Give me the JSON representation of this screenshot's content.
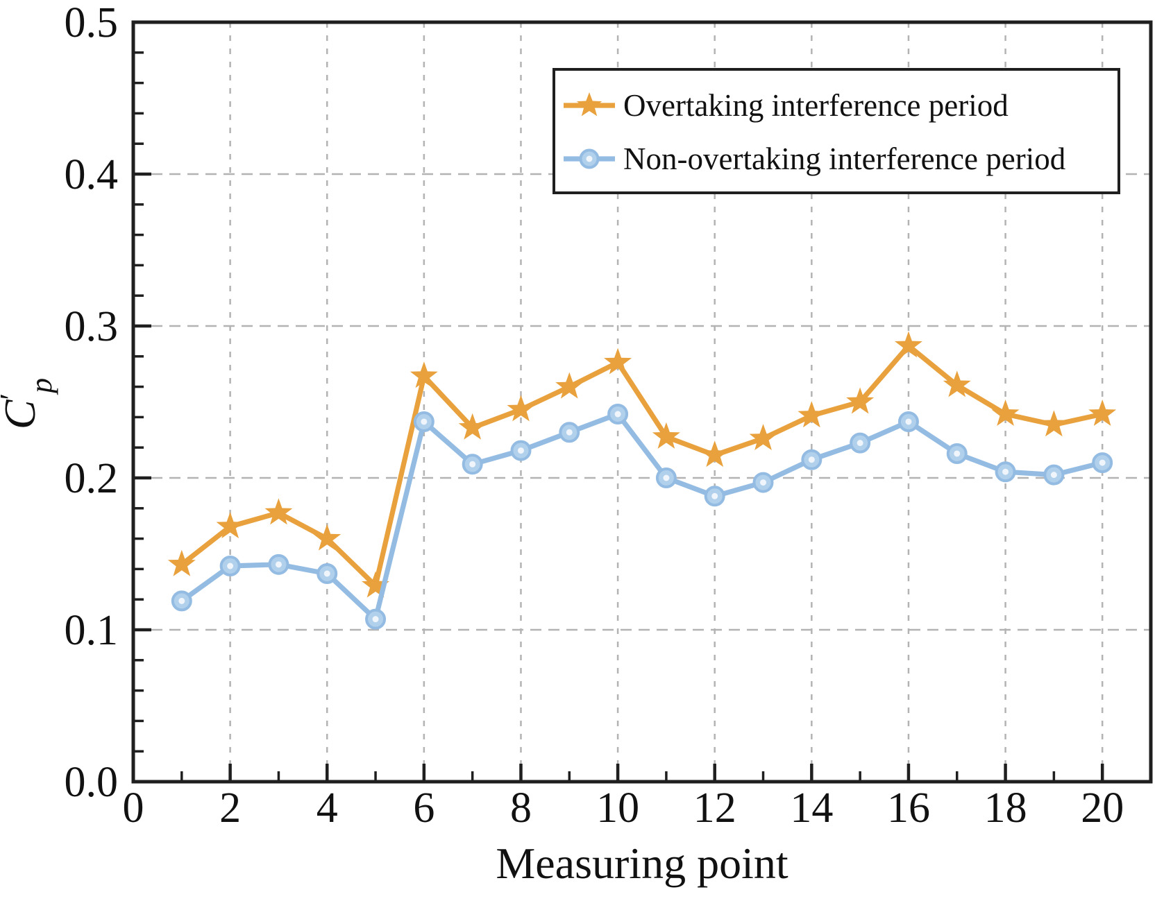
{
  "figure": {
    "xlabel": "Measuring point",
    "ylabel_main": "C",
    "ylabel_prime": "′",
    "ylabel_sub": "p"
  },
  "chart_data": {
    "type": "line",
    "title": "",
    "xlabel": "Measuring point",
    "ylabel": "C′p",
    "xlim": [
      0,
      21
    ],
    "ylim": [
      0,
      0.5
    ],
    "x": [
      1,
      2,
      3,
      4,
      5,
      6,
      7,
      8,
      9,
      10,
      11,
      12,
      13,
      14,
      15,
      16,
      17,
      18,
      19,
      20
    ],
    "series": [
      {
        "name": "Overtaking interference period",
        "color": "#E8A13C",
        "marker": "star",
        "values": [
          0.143,
          0.168,
          0.177,
          0.16,
          0.129,
          0.267,
          0.233,
          0.245,
          0.26,
          0.276,
          0.227,
          0.215,
          0.226,
          0.241,
          0.25,
          0.287,
          0.261,
          0.242,
          0.235,
          0.242
        ]
      },
      {
        "name": "Non-overtaking interference period",
        "color": "#94BCE3",
        "marker": "circle",
        "marker_fill": "#B0D0EC",
        "marker_inner": "#EFF5FB",
        "values": [
          0.119,
          0.142,
          0.143,
          0.137,
          0.107,
          0.237,
          0.209,
          0.218,
          0.23,
          0.242,
          0.2,
          0.188,
          0.197,
          0.212,
          0.223,
          0.237,
          0.216,
          0.204,
          0.202,
          0.21
        ]
      }
    ],
    "x_ticks": [
      0,
      2,
      4,
      6,
      8,
      10,
      12,
      14,
      16,
      18,
      20
    ],
    "x_tick_labels": [
      "0",
      "2",
      "4",
      "6",
      "8",
      "10",
      "12",
      "14",
      "16",
      "18",
      "20"
    ],
    "y_ticks": [
      0,
      0.1,
      0.2,
      0.3,
      0.4,
      0.5
    ],
    "y_tick_labels": [
      "0.0",
      "0.1",
      "0.2",
      "0.3",
      "0.4",
      "0.5"
    ],
    "x_minor_step": 1,
    "y_minor_step": 0.02,
    "grid": {
      "on": true,
      "style": "dashed",
      "color": "#B3B3B3"
    },
    "axis_color": "#1F1F1F",
    "legend": {
      "position": "top-right",
      "border": true
    }
  }
}
